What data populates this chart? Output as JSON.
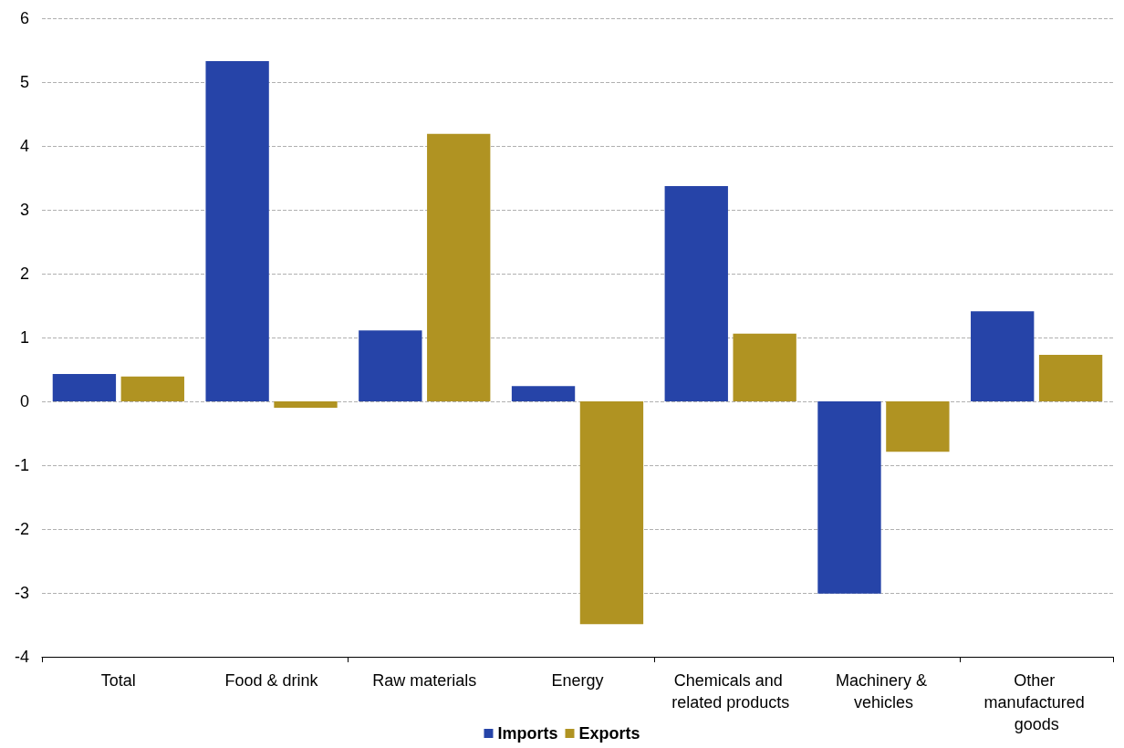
{
  "chart_data": {
    "type": "bar",
    "categories": [
      "Total",
      "Food & drink",
      "Raw materials",
      "Energy",
      "Chemicals and related products",
      "Machinery & vehicles",
      "Other manufactured goods"
    ],
    "series": [
      {
        "name": "Imports",
        "color": "#2644a8",
        "values": [
          0.43,
          5.33,
          1.11,
          0.24,
          3.37,
          -3.01,
          1.41
        ]
      },
      {
        "name": "Exports",
        "color": "#b09322",
        "values": [
          0.39,
          -0.1,
          4.19,
          -3.49,
          1.06,
          -0.79,
          0.73
        ]
      }
    ],
    "ylim": [
      -4,
      6
    ],
    "yticks": [
      -4,
      -3,
      -2,
      -1,
      0,
      1,
      2,
      3,
      4,
      5,
      6
    ],
    "grid": "y",
    "legend": "bottom"
  }
}
